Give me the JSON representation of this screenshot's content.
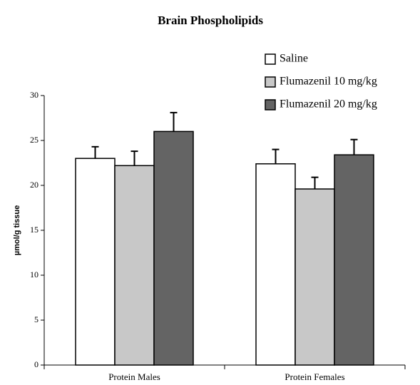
{
  "chart_data": {
    "type": "bar",
    "title": "Brain Phospholipids",
    "ylabel": "µmol/g tissue",
    "categories": [
      "Protein Males",
      "Protein Females"
    ],
    "series": [
      {
        "name": "Saline",
        "color": "#ffffff",
        "values": [
          23.0,
          22.4
        ],
        "errors": [
          1.3,
          1.6
        ]
      },
      {
        "name": "Flumazenil 10 mg/kg",
        "color": "#c8c8c8",
        "values": [
          22.2,
          19.6
        ],
        "errors": [
          1.6,
          1.3
        ]
      },
      {
        "name": "Flumazenil 20 mg/kg",
        "color": "#646464",
        "values": [
          26.0,
          23.4
        ],
        "errors": [
          2.1,
          1.7
        ]
      }
    ],
    "ylim": [
      0,
      30
    ],
    "yticks": [
      0,
      5,
      10,
      15,
      20,
      25,
      30
    ],
    "legend": "upper right"
  }
}
